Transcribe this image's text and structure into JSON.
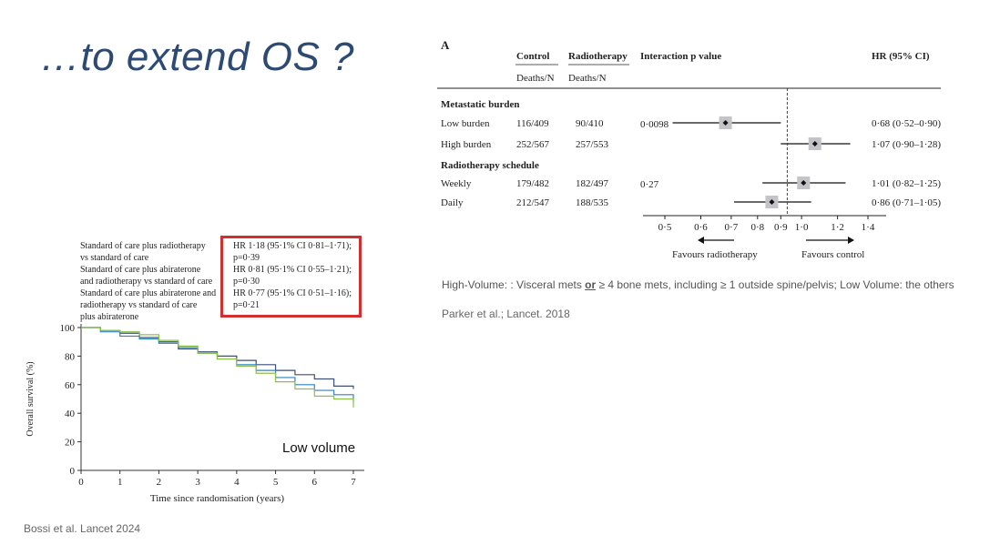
{
  "slide": {
    "title": "…to extend OS ?",
    "left_citation": "Bossi et al. Lancet 2024",
    "right_citation": "Parker et al.; Lancet. 2018",
    "note_prefix": "High-Volume: : Visceral mets ",
    "note_or": "or",
    "note_suffix": " ≥ 4 bone mets, including ≥ 1 outside spine/pelvis; Low Volume: the others"
  },
  "km_panel": {
    "legend_lines": [
      "Standard of care plus radiotherapy",
      "vs standard of care",
      "Standard of care plus abiraterone",
      "and radiotherapy vs standard of care",
      "Standard of care plus abiraterone and",
      "radiotherapy vs standard of care",
      "plus abiraterone"
    ],
    "hr_lines": [
      "HR 1·18 (95·1% CI 0·81–1·71);",
      "p=0·39",
      "HR 0·81 (95·1% CI 0·55–1·21);",
      "p=0·30",
      "HR 0·77 (95·1% CI 0·51–1·16);",
      "p=0·21"
    ],
    "label": "Low volume",
    "colors": {
      "dark": "#3d4f72",
      "blue": "#2f83c4",
      "green": "#8cc04a",
      "box": "#d32f2f"
    }
  },
  "forest_panel": {
    "panel_label": "A",
    "col_control": "Control",
    "col_radiotherapy": "Radiotherapy",
    "col_interaction": "Interaction p value",
    "col_hr": "HR (95% CI)",
    "col_deaths": "Deaths/N",
    "favours_left": "Favours radiotherapy",
    "favours_right": "Favours control"
  },
  "chart_data": [
    {
      "type": "line",
      "xlabel": "Time since randomisation (years)",
      "ylabel": "Overall survival (%)",
      "xlim": [
        0,
        7
      ],
      "ylim": [
        0,
        100
      ],
      "xticks": [
        0,
        1,
        2,
        3,
        4,
        5,
        6,
        7
      ],
      "yticks": [
        0,
        20,
        40,
        60,
        80,
        100
      ],
      "series": [
        {
          "color": "#3d4f72",
          "x": [
            0,
            0.5,
            1,
            1.5,
            2,
            2.5,
            3,
            3.5,
            4,
            4.5,
            5,
            5.5,
            6,
            6.5,
            7
          ],
          "y": [
            100,
            98,
            96,
            93,
            90,
            85,
            83,
            80,
            77,
            74,
            70,
            67,
            64,
            59,
            57
          ]
        },
        {
          "color": "#2f83c4",
          "x": [
            0,
            0.5,
            1,
            1.5,
            2,
            2.5,
            3,
            3.5,
            4,
            4.5,
            5,
            5.5,
            6,
            6.5,
            7
          ],
          "y": [
            100,
            97,
            94,
            92,
            89,
            86,
            82,
            78,
            74,
            70,
            65,
            60,
            56,
            53,
            48
          ]
        },
        {
          "color": "#8cc04a",
          "x": [
            0,
            0.5,
            1,
            1.5,
            2,
            2.5,
            3,
            3.5,
            4,
            4.5,
            5,
            5.5,
            6,
            6.5,
            7
          ],
          "y": [
            100,
            98,
            97,
            95,
            91,
            87,
            82,
            78,
            73,
            68,
            62,
            57,
            52,
            50,
            44
          ]
        }
      ]
    },
    {
      "type": "forest",
      "xscale": "log",
      "xlim": [
        0.45,
        1.45
      ],
      "xticks": [
        0.5,
        0.6,
        0.7,
        0.8,
        0.9,
        1.0,
        1.2,
        1.4
      ],
      "xtick_labels": [
        "0·5",
        "0·6",
        "0·7",
        "0·8",
        "0·9",
        "1·0",
        "1·2",
        "1·4"
      ],
      "reference": 0.93,
      "rows": [
        {
          "kind": "header",
          "label": "Metastatic burden"
        },
        {
          "kind": "data",
          "label": "Low burden",
          "control": "116/409",
          "radiotherapy": "90/410",
          "p": "0·0098",
          "hr": 0.68,
          "lo": 0.52,
          "hi": 0.9,
          "hr_text": "0·68 (0·52–0·90)"
        },
        {
          "kind": "data",
          "label": "High burden",
          "control": "252/567",
          "radiotherapy": "257/553",
          "p": "",
          "hr": 1.07,
          "lo": 0.9,
          "hi": 1.28,
          "hr_text": "1·07 (0·90–1·28)"
        },
        {
          "kind": "header",
          "label": "Radiotherapy schedule"
        },
        {
          "kind": "data",
          "label": "Weekly",
          "control": "179/482",
          "radiotherapy": "182/497",
          "p": "0·27",
          "hr": 1.01,
          "lo": 0.82,
          "hi": 1.25,
          "hr_text": "1·01 (0·82–1·25)"
        },
        {
          "kind": "data",
          "label": "Daily",
          "control": "212/547",
          "radiotherapy": "188/535",
          "p": "",
          "hr": 0.86,
          "lo": 0.71,
          "hi": 1.05,
          "hr_text": "0·86 (0·71–1·05)"
        }
      ]
    }
  ]
}
